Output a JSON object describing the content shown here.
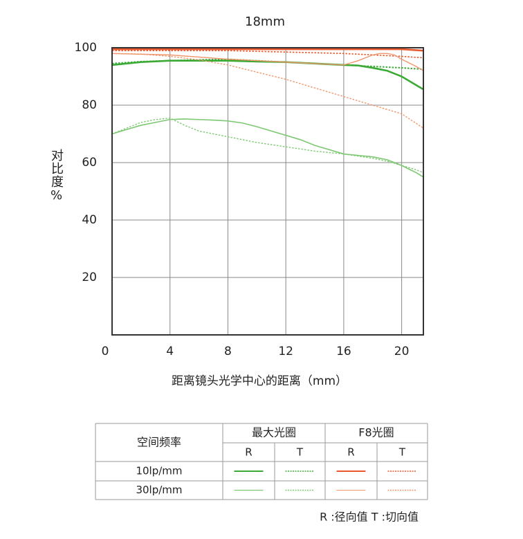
{
  "chart_data": {
    "type": "line",
    "title": "18mm",
    "xlabel": "距离镜头光学中心的距离（mm）",
    "ylabel": "对比度%",
    "xlim": [
      0,
      21.5
    ],
    "ylim": [
      0,
      100
    ],
    "xticks": [
      0,
      4,
      8,
      12,
      16,
      20
    ],
    "yticks": [
      20,
      40,
      60,
      80,
      100
    ],
    "grid": true,
    "series": [
      {
        "color": "#3aaa35",
        "dash": false,
        "width": 2.6,
        "x": [
          0,
          2,
          4,
          6,
          8,
          10,
          12,
          14,
          16,
          17,
          18,
          19,
          20,
          21,
          21.5
        ],
        "values": [
          94,
          95,
          95.5,
          95.5,
          95.5,
          95.2,
          95,
          94.5,
          94,
          93.8,
          93,
          92,
          90,
          87,
          85.5
        ]
      },
      {
        "color": "#3aaa35",
        "dash": true,
        "width": 2,
        "x": [
          0,
          2,
          4,
          6,
          8,
          10,
          12,
          14,
          16,
          18,
          20,
          21.5
        ],
        "values": [
          94.5,
          95.2,
          95.5,
          95.8,
          96,
          95.5,
          95,
          94.5,
          94,
          93.5,
          93,
          92.5
        ]
      },
      {
        "color": "#e8572a",
        "dash": false,
        "width": 2.6,
        "x": [
          0,
          4,
          8,
          12,
          16,
          20,
          21.5
        ],
        "values": [
          99.5,
          99.5,
          99.5,
          99.5,
          99.5,
          99.5,
          99
        ]
      },
      {
        "color": "#e8572a",
        "dash": true,
        "width": 1.6,
        "x": [
          0,
          4,
          8,
          12,
          16,
          20,
          21.5
        ],
        "values": [
          99,
          99,
          99,
          98.5,
          98,
          97,
          96.5
        ]
      },
      {
        "color": "#7dc872",
        "dash": false,
        "width": 1.6,
        "x": [
          0,
          1,
          2,
          3,
          4,
          5,
          6,
          7,
          8,
          9,
          10,
          11,
          12,
          13,
          14,
          15,
          16,
          17,
          18,
          19,
          20,
          21,
          21.5
        ],
        "values": [
          70,
          71.5,
          73,
          74,
          75,
          75.2,
          75,
          74.8,
          74.5,
          73.8,
          72.5,
          71,
          69.5,
          68,
          66,
          64.5,
          63,
          62.5,
          62,
          61,
          59,
          56.5,
          55
        ]
      },
      {
        "color": "#7dc872",
        "dash": true,
        "width": 1.4,
        "x": [
          0,
          1,
          2,
          3,
          4,
          5,
          6,
          7,
          8,
          10,
          12,
          14,
          16,
          18,
          19,
          20,
          21,
          21.5
        ],
        "values": [
          70,
          72,
          74,
          75,
          75.5,
          73,
          71,
          70,
          69,
          67,
          65.5,
          64,
          63,
          61.5,
          60.5,
          59,
          57.5,
          56.5
        ]
      },
      {
        "color": "#f0956a",
        "dash": false,
        "width": 1.4,
        "x": [
          0,
          4,
          8,
          12,
          16,
          17,
          18,
          18.5,
          19,
          19.5,
          20,
          21,
          21.5
        ],
        "values": [
          98,
          97.5,
          96,
          95,
          94,
          95.5,
          97.5,
          98,
          98,
          97.5,
          96,
          93.5,
          92
        ]
      },
      {
        "color": "#f0956a",
        "dash": true,
        "width": 1.4,
        "x": [
          0,
          2,
          4,
          6,
          8,
          10,
          12,
          14,
          16,
          18,
          20,
          21.5
        ],
        "values": [
          98,
          97.8,
          97,
          95.8,
          94,
          91.5,
          89,
          86,
          83,
          80,
          77,
          72
        ]
      }
    ]
  },
  "legend_table": {
    "header": "空间频率",
    "groups": [
      "最大光圈",
      "F8光圈"
    ],
    "columns": [
      "R",
      "T",
      "R",
      "T"
    ],
    "rows": [
      "10lp/mm",
      "30lp/mm"
    ]
  },
  "footnote": "R :径向值    T :切向值"
}
